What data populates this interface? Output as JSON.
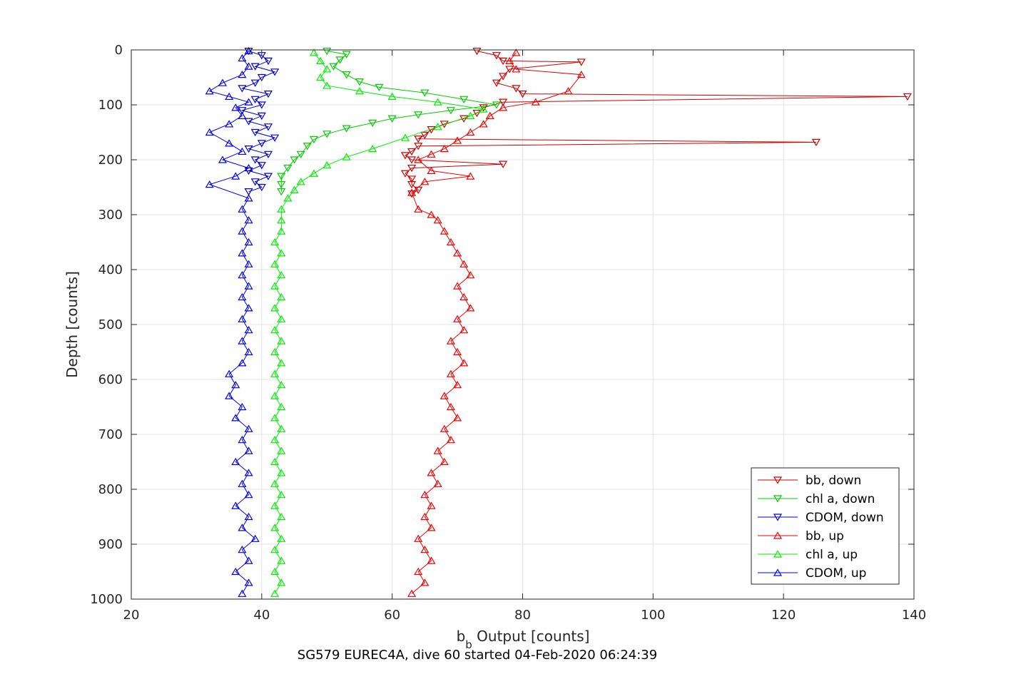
{
  "chart_data": {
    "type": "scatter",
    "xlabel_main": "b",
    "xlabel_sub": "b",
    "xlabel_rest": " Output [counts]",
    "ylabel": "Depth [counts]",
    "caption": "SG579 EUREC4A, dive 60 started 04-Feb-2020 06:24:39",
    "xlim": [
      20,
      140
    ],
    "ylim": [
      0,
      1000
    ],
    "y_reversed": true,
    "grid": true,
    "x_ticks": [
      "20",
      "40",
      "60",
      "80",
      "100",
      "120",
      "140"
    ],
    "y_ticks": [
      "0",
      "100",
      "200",
      "300",
      "400",
      "500",
      "600",
      "700",
      "800",
      "900",
      "1000"
    ],
    "legend_placement": "bottom-right",
    "series": [
      {
        "name": "bb, down",
        "color": "#cc0000",
        "marker": "triangle-down",
        "connected": true,
        "points": [
          [
            73,
            2
          ],
          [
            76,
            10
          ],
          [
            77,
            20
          ],
          [
            89,
            22
          ],
          [
            78,
            35
          ],
          [
            77,
            48
          ],
          [
            76,
            60
          ],
          [
            79,
            70
          ],
          [
            80,
            80
          ],
          [
            139,
            85
          ],
          [
            77,
            95
          ],
          [
            74,
            105
          ],
          [
            73,
            115
          ],
          [
            71,
            125
          ],
          [
            68,
            135
          ],
          [
            66,
            145
          ],
          [
            65,
            155
          ],
          [
            64,
            162
          ],
          [
            125,
            168
          ],
          [
            64,
            175
          ],
          [
            63,
            185
          ],
          [
            62,
            192
          ],
          [
            63,
            200
          ],
          [
            77,
            208
          ],
          [
            63,
            215
          ],
          [
            62,
            225
          ],
          [
            63,
            235
          ],
          [
            63,
            245
          ],
          [
            64,
            255
          ],
          [
            63,
            262
          ]
        ]
      },
      {
        "name": "chl a, down",
        "color": "#00cc00",
        "marker": "triangle-down",
        "connected": true,
        "points": [
          [
            50,
            2
          ],
          [
            53,
            8
          ],
          [
            52,
            18
          ],
          [
            51,
            30
          ],
          [
            53,
            45
          ],
          [
            55,
            58
          ],
          [
            58,
            68
          ],
          [
            65,
            78
          ],
          [
            71,
            90
          ],
          [
            76,
            100
          ],
          [
            69,
            110
          ],
          [
            64,
            118
          ],
          [
            60,
            125
          ],
          [
            57,
            133
          ],
          [
            53,
            143
          ],
          [
            50,
            153
          ],
          [
            48,
            163
          ],
          [
            47,
            175
          ],
          [
            46,
            190
          ],
          [
            45,
            200
          ],
          [
            44,
            215
          ],
          [
            43,
            230
          ],
          [
            43,
            245
          ],
          [
            43,
            258
          ]
        ]
      },
      {
        "name": "CDOM, down",
        "color": "#0000cc",
        "marker": "triangle-down",
        "connected": true,
        "points": [
          [
            38,
            2
          ],
          [
            40,
            10
          ],
          [
            41,
            20
          ],
          [
            39,
            30
          ],
          [
            42,
            40
          ],
          [
            40,
            50
          ],
          [
            39,
            60
          ],
          [
            37,
            70
          ],
          [
            41,
            80
          ],
          [
            39,
            90
          ],
          [
            40,
            100
          ],
          [
            37,
            110
          ],
          [
            40,
            120
          ],
          [
            38,
            130
          ],
          [
            41,
            140
          ],
          [
            39,
            150
          ],
          [
            42,
            160
          ],
          [
            40,
            170
          ],
          [
            38,
            180
          ],
          [
            41,
            190
          ],
          [
            39,
            200
          ],
          [
            40,
            210
          ],
          [
            38,
            220
          ],
          [
            41,
            230
          ],
          [
            39,
            240
          ],
          [
            40,
            250
          ],
          [
            38,
            258
          ]
        ]
      },
      {
        "name": "bb, up",
        "color": "#ee0000",
        "marker": "triangle-up",
        "connected": true,
        "points": [
          [
            63,
            990
          ],
          [
            65,
            970
          ],
          [
            64,
            950
          ],
          [
            66,
            930
          ],
          [
            65,
            910
          ],
          [
            64,
            890
          ],
          [
            66,
            870
          ],
          [
            65,
            850
          ],
          [
            66,
            830
          ],
          [
            65,
            810
          ],
          [
            67,
            790
          ],
          [
            66,
            770
          ],
          [
            68,
            750
          ],
          [
            67,
            730
          ],
          [
            69,
            710
          ],
          [
            68,
            690
          ],
          [
            70,
            670
          ],
          [
            69,
            650
          ],
          [
            68,
            630
          ],
          [
            70,
            610
          ],
          [
            69,
            590
          ],
          [
            71,
            570
          ],
          [
            70,
            550
          ],
          [
            69,
            530
          ],
          [
            71,
            510
          ],
          [
            70,
            490
          ],
          [
            72,
            470
          ],
          [
            71,
            450
          ],
          [
            70,
            430
          ],
          [
            72,
            410
          ],
          [
            71,
            390
          ],
          [
            70,
            370
          ],
          [
            69,
            350
          ],
          [
            68,
            330
          ],
          [
            67,
            310
          ],
          [
            66,
            300
          ],
          [
            64,
            290
          ],
          [
            63,
            260
          ],
          [
            65,
            240
          ],
          [
            72,
            230
          ],
          [
            66,
            220
          ],
          [
            64,
            200
          ],
          [
            66,
            190
          ],
          [
            68,
            180
          ],
          [
            70,
            165
          ],
          [
            72,
            150
          ],
          [
            74,
            135
          ],
          [
            75,
            120
          ],
          [
            77,
            105
          ],
          [
            82,
            95
          ],
          [
            87,
            75
          ],
          [
            89,
            45
          ],
          [
            79,
            35
          ],
          [
            78,
            20
          ],
          [
            79,
            5
          ]
        ]
      },
      {
        "name": "chl a, up",
        "color": "#00ee00",
        "marker": "triangle-up",
        "connected": true,
        "points": [
          [
            42,
            990
          ],
          [
            43,
            970
          ],
          [
            42,
            950
          ],
          [
            43,
            930
          ],
          [
            42,
            910
          ],
          [
            43,
            890
          ],
          [
            42,
            870
          ],
          [
            43,
            850
          ],
          [
            42,
            830
          ],
          [
            43,
            810
          ],
          [
            42,
            790
          ],
          [
            43,
            770
          ],
          [
            42,
            750
          ],
          [
            43,
            730
          ],
          [
            42,
            710
          ],
          [
            43,
            690
          ],
          [
            42,
            670
          ],
          [
            43,
            650
          ],
          [
            42,
            630
          ],
          [
            43,
            610
          ],
          [
            42,
            590
          ],
          [
            43,
            570
          ],
          [
            42,
            550
          ],
          [
            43,
            530
          ],
          [
            42,
            510
          ],
          [
            43,
            490
          ],
          [
            42,
            470
          ],
          [
            43,
            450
          ],
          [
            42,
            430
          ],
          [
            43,
            410
          ],
          [
            42,
            390
          ],
          [
            43,
            370
          ],
          [
            42,
            350
          ],
          [
            43,
            330
          ],
          [
            43,
            310
          ],
          [
            43,
            290
          ],
          [
            44,
            270
          ],
          [
            45,
            255
          ],
          [
            46,
            240
          ],
          [
            48,
            225
          ],
          [
            50,
            210
          ],
          [
            53,
            195
          ],
          [
            57,
            180
          ],
          [
            62,
            160
          ],
          [
            67,
            140
          ],
          [
            72,
            120
          ],
          [
            74,
            108
          ],
          [
            67,
            95
          ],
          [
            60,
            85
          ],
          [
            55,
            75
          ],
          [
            50,
            65
          ],
          [
            49,
            50
          ],
          [
            50,
            35
          ],
          [
            49,
            20
          ],
          [
            48,
            5
          ]
        ]
      },
      {
        "name": "CDOM, up",
        "color": "#0000ee",
        "marker": "triangle-up",
        "connected": true,
        "points": [
          [
            37,
            990
          ],
          [
            38,
            970
          ],
          [
            36,
            950
          ],
          [
            38,
            930
          ],
          [
            37,
            910
          ],
          [
            39,
            890
          ],
          [
            37,
            870
          ],
          [
            38,
            850
          ],
          [
            36,
            830
          ],
          [
            38,
            810
          ],
          [
            37,
            790
          ],
          [
            38,
            770
          ],
          [
            36,
            750
          ],
          [
            38,
            730
          ],
          [
            37,
            710
          ],
          [
            38,
            690
          ],
          [
            36,
            670
          ],
          [
            37,
            650
          ],
          [
            35,
            630
          ],
          [
            36,
            610
          ],
          [
            35,
            590
          ],
          [
            37,
            570
          ],
          [
            38,
            550
          ],
          [
            37,
            530
          ],
          [
            38,
            510
          ],
          [
            37,
            490
          ],
          [
            38,
            470
          ],
          [
            37,
            450
          ],
          [
            38,
            430
          ],
          [
            37,
            410
          ],
          [
            38,
            390
          ],
          [
            37,
            370
          ],
          [
            38,
            350
          ],
          [
            37,
            330
          ],
          [
            38,
            310
          ],
          [
            37,
            290
          ],
          [
            38,
            270
          ],
          [
            32,
            245
          ],
          [
            36,
            230
          ],
          [
            38,
            215
          ],
          [
            34,
            200
          ],
          [
            37,
            185
          ],
          [
            35,
            170
          ],
          [
            32,
            150
          ],
          [
            35,
            135
          ],
          [
            37,
            120
          ],
          [
            36,
            105
          ],
          [
            38,
            95
          ],
          [
            35,
            85
          ],
          [
            32,
            75
          ],
          [
            34,
            60
          ],
          [
            37,
            45
          ],
          [
            38,
            30
          ],
          [
            37,
            15
          ],
          [
            38,
            2
          ]
        ]
      }
    ]
  }
}
